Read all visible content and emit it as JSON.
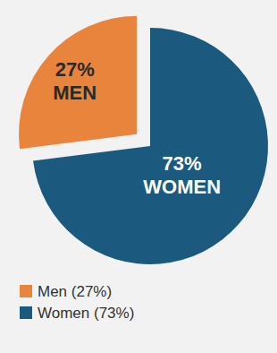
{
  "chart_data": {
    "type": "pie",
    "categories": [
      "Men (27%)",
      "Women (73%)"
    ],
    "slice_names": [
      "MEN",
      "WOMEN"
    ],
    "values": [
      27,
      73
    ],
    "value_labels": [
      "27%",
      "73%"
    ],
    "colors": [
      "#e8843c",
      "#1b5a7e"
    ],
    "data_labels": true,
    "legend": "bottom"
  }
}
